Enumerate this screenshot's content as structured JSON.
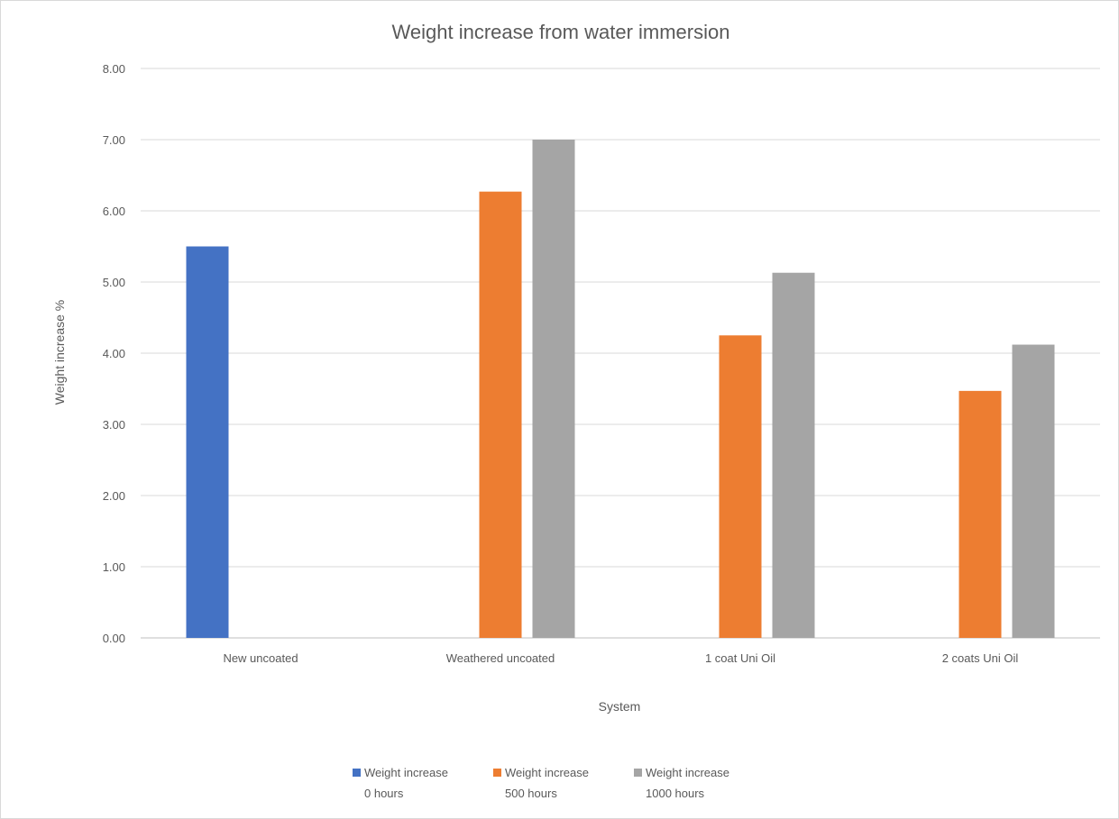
{
  "chart_data": {
    "type": "bar",
    "title": "Weight increase from water immersion",
    "xlabel": "System",
    "ylabel": "Weight increase %",
    "ylim": [
      0,
      8
    ],
    "ytick_step": 1,
    "ytick_labels": [
      "0.00",
      "1.00",
      "2.00",
      "3.00",
      "4.00",
      "5.00",
      "6.00",
      "7.00",
      "8.00"
    ],
    "grid": true,
    "legend_position": "bottom",
    "categories": [
      "New uncoated",
      "Weathered uncoated",
      "1 coat Uni Oil",
      "2 coats Uni Oil"
    ],
    "series": [
      {
        "name": "Weight increase 0 hours",
        "legend_lines": [
          "Weight increase",
          "0 hours"
        ],
        "color": "#4472C4",
        "values": [
          5.5,
          null,
          null,
          null
        ]
      },
      {
        "name": "Weight increase 500 hours",
        "legend_lines": [
          "Weight increase",
          "500 hours"
        ],
        "color": "#ED7D31",
        "values": [
          null,
          6.27,
          4.25,
          3.47
        ]
      },
      {
        "name": "Weight increase 1000 hours",
        "legend_lines": [
          "Weight increase",
          "1000 hours"
        ],
        "color": "#A5A5A5",
        "values": [
          null,
          7.0,
          5.13,
          4.12
        ]
      }
    ]
  }
}
